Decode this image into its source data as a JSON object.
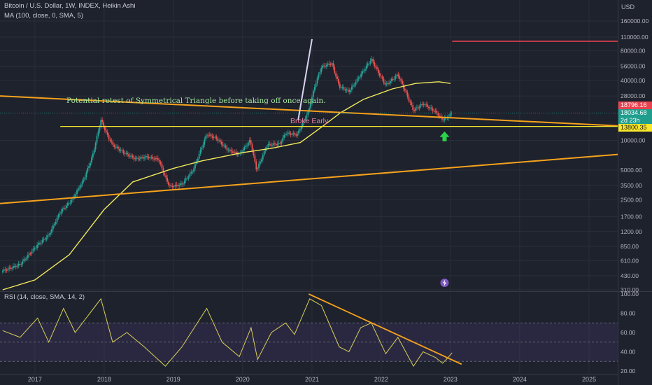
{
  "header": {
    "title": "Bitcoin / U.S. Dollar, 1W, INDEX, Heikin Ashi",
    "indicator": "MA (100, close, 0, SMA, 5)",
    "rsi_label": "RSI (14, close, SMA, 14, 2)"
  },
  "price_axis": {
    "currency": "USD",
    "ticks": [
      "160000.00",
      "110000.00",
      "80000.00",
      "56000.00",
      "40000.00",
      "28000.00",
      "10000.00",
      "5000.00",
      "3500.00",
      "2500.00",
      "1700.00",
      "1200.00",
      "850.00",
      "610.00",
      "430.00",
      "310.00"
    ]
  },
  "rsi_axis": {
    "ticks": [
      "100.00",
      "80.00",
      "60.00",
      "40.00",
      "20.00"
    ]
  },
  "time_axis": {
    "ticks": [
      "2017",
      "2018",
      "2019",
      "2020",
      "2021",
      "2022",
      "2023",
      "2024",
      "2025"
    ]
  },
  "price_tags": {
    "red": "18796.16",
    "teal": "18034.68",
    "countdown": "2d 23h",
    "yellow": "13800.35"
  },
  "annotations": {
    "main": "Potential retest of Symmetrical Triangle before taking off once again.",
    "broke": "Broke Early"
  },
  "colors": {
    "background": "#1e222d",
    "up": "#26a69a",
    "down": "#ef5350",
    "ma": "#f2ea5c",
    "trendline": "#f7a21b",
    "text": "#b2b5be"
  },
  "chart_data": [
    {
      "type": "candlestick",
      "title": "Bitcoin / U.S. Dollar, 1W, INDEX, Heikin Ashi",
      "y_scale": "log",
      "ylim": [
        310,
        160000
      ],
      "x_range": [
        "2016-07",
        "2025-06"
      ],
      "anchors": [
        {
          "t": "2016-07-15",
          "p": 480
        },
        {
          "t": "2016-10-15",
          "p": 560
        },
        {
          "t": "2017-01-15",
          "p": 880
        },
        {
          "t": "2017-03-15",
          "p": 1100
        },
        {
          "t": "2017-05-15",
          "p": 1900
        },
        {
          "t": "2017-07-15",
          "p": 2500
        },
        {
          "t": "2017-09-15",
          "p": 4000
        },
        {
          "t": "2017-11-01",
          "p": 7000
        },
        {
          "t": "2017-12-15",
          "p": 16000
        },
        {
          "t": "2018-01-20",
          "p": 11000
        },
        {
          "t": "2018-02-15",
          "p": 9000
        },
        {
          "t": "2018-04-15",
          "p": 7500
        },
        {
          "t": "2018-06-15",
          "p": 6500
        },
        {
          "t": "2018-08-15",
          "p": 6800
        },
        {
          "t": "2018-10-15",
          "p": 6400
        },
        {
          "t": "2018-11-25",
          "p": 4000
        },
        {
          "t": "2018-12-15",
          "p": 3400
        },
        {
          "t": "2019-02-15",
          "p": 3600
        },
        {
          "t": "2019-04-15",
          "p": 5000
        },
        {
          "t": "2019-06-26",
          "p": 11500
        },
        {
          "t": "2019-08-15",
          "p": 10500
        },
        {
          "t": "2019-10-15",
          "p": 8000
        },
        {
          "t": "2019-12-15",
          "p": 7200
        },
        {
          "t": "2020-02-10",
          "p": 10000
        },
        {
          "t": "2020-03-15",
          "p": 5000
        },
        {
          "t": "2020-05-10",
          "p": 9000
        },
        {
          "t": "2020-07-15",
          "p": 9200
        },
        {
          "t": "2020-08-15",
          "p": 11800
        },
        {
          "t": "2020-10-15",
          "p": 11400
        },
        {
          "t": "2020-12-15",
          "p": 20000
        },
        {
          "t": "2021-01-15",
          "p": 35000
        },
        {
          "t": "2021-02-20",
          "p": 55000
        },
        {
          "t": "2021-04-15",
          "p": 60000
        },
        {
          "t": "2021-05-25",
          "p": 35000
        },
        {
          "t": "2021-07-15",
          "p": 31000
        },
        {
          "t": "2021-09-15",
          "p": 46000
        },
        {
          "t": "2021-11-10",
          "p": 66000
        },
        {
          "t": "2021-12-20",
          "p": 47000
        },
        {
          "t": "2022-01-25",
          "p": 36000
        },
        {
          "t": "2022-03-30",
          "p": 46000
        },
        {
          "t": "2022-05-15",
          "p": 29000
        },
        {
          "t": "2022-06-20",
          "p": 20000
        },
        {
          "t": "2022-08-10",
          "p": 23500
        },
        {
          "t": "2022-10-15",
          "p": 19300
        },
        {
          "t": "2022-11-20",
          "p": 16200
        },
        {
          "t": "2022-12-15",
          "p": 17000
        },
        {
          "t": "2023-01-10",
          "p": 18800
        }
      ],
      "moving_average": {
        "name": "MA (100, close, 0, SMA, 5)",
        "points": [
          {
            "t": "2016-07-15",
            "p": 310
          },
          {
            "t": "2017-01-01",
            "p": 390
          },
          {
            "t": "2017-07-01",
            "p": 700
          },
          {
            "t": "2018-01-01",
            "p": 2000
          },
          {
            "t": "2018-06-01",
            "p": 3800
          },
          {
            "t": "2019-01-01",
            "p": 5200
          },
          {
            "t": "2019-06-01",
            "p": 6200
          },
          {
            "t": "2020-01-01",
            "p": 7500
          },
          {
            "t": "2020-06-01",
            "p": 8300
          },
          {
            "t": "2020-11-01",
            "p": 9500
          },
          {
            "t": "2021-03-01",
            "p": 14000
          },
          {
            "t": "2021-06-01",
            "p": 19000
          },
          {
            "t": "2021-10-01",
            "p": 26000
          },
          {
            "t": "2022-03-01",
            "p": 33000
          },
          {
            "t": "2022-07-01",
            "p": 37500
          },
          {
            "t": "2022-11-01",
            "p": 39000
          },
          {
            "t": "2023-01-01",
            "p": 37500
          }
        ]
      },
      "trendlines": [
        {
          "role": "triangle-top",
          "from": {
            "t": "2016-07-01",
            "p": 28000
          },
          "to": {
            "t": "2025-06-01",
            "p": 14000
          }
        },
        {
          "role": "triangle-bottom",
          "from": {
            "t": "2016-07-01",
            "p": 2300
          },
          "to": {
            "t": "2025-06-01",
            "p": 7200
          }
        }
      ],
      "horizontal_lines": [
        {
          "role": "support",
          "p": 13800,
          "from": "2017-05-15",
          "to": "2025-06-01"
        },
        {
          "role": "target",
          "p": 100000,
          "from": "2023-01-10",
          "to": "2025-06-01"
        }
      ],
      "impulse_line": {
        "from": {
          "t": "2020-10-20",
          "p": 16000
        },
        "to": {
          "t": "2021-01-01",
          "p": 105000
        }
      }
    },
    {
      "type": "line",
      "title": "RSI (14, close, SMA, 14, 2)",
      "ylim": [
        20,
        100
      ],
      "levels": [
        70,
        50,
        30
      ],
      "series": [
        {
          "values": [
            {
              "t": "2016-07-15",
              "v": 62
            },
            {
              "t": "2016-10-15",
              "v": 55
            },
            {
              "t": "2017-01-15",
              "v": 75
            },
            {
              "t": "2017-03-15",
              "v": 50
            },
            {
              "t": "2017-06-01",
              "v": 85
            },
            {
              "t": "2017-08-01",
              "v": 60
            },
            {
              "t": "2017-12-15",
              "v": 95
            },
            {
              "t": "2018-02-15",
              "v": 50
            },
            {
              "t": "2018-05-01",
              "v": 60
            },
            {
              "t": "2018-08-01",
              "v": 45
            },
            {
              "t": "2018-11-20",
              "v": 25
            },
            {
              "t": "2019-02-15",
              "v": 45
            },
            {
              "t": "2019-06-26",
              "v": 85
            },
            {
              "t": "2019-09-15",
              "v": 50
            },
            {
              "t": "2019-12-15",
              "v": 35
            },
            {
              "t": "2020-02-15",
              "v": 65
            },
            {
              "t": "2020-03-20",
              "v": 32
            },
            {
              "t": "2020-06-01",
              "v": 60
            },
            {
              "t": "2020-08-15",
              "v": 70
            },
            {
              "t": "2020-10-01",
              "v": 58
            },
            {
              "t": "2020-12-20",
              "v": 95
            },
            {
              "t": "2021-02-20",
              "v": 88
            },
            {
              "t": "2021-05-25",
              "v": 45
            },
            {
              "t": "2021-07-15",
              "v": 40
            },
            {
              "t": "2021-09-15",
              "v": 65
            },
            {
              "t": "2021-11-10",
              "v": 70
            },
            {
              "t": "2022-01-25",
              "v": 38
            },
            {
              "t": "2022-03-30",
              "v": 55
            },
            {
              "t": "2022-06-20",
              "v": 25
            },
            {
              "t": "2022-08-10",
              "v": 40
            },
            {
              "t": "2022-10-15",
              "v": 34
            },
            {
              "t": "2022-11-20",
              "v": 28
            },
            {
              "t": "2022-12-15",
              "v": 33
            },
            {
              "t": "2023-01-10",
              "v": 39
            }
          ]
        }
      ],
      "trendline": {
        "from": {
          "t": "2020-12-15",
          "v": 100
        },
        "to": {
          "t": "2023-03-01",
          "v": 27
        }
      }
    }
  ]
}
